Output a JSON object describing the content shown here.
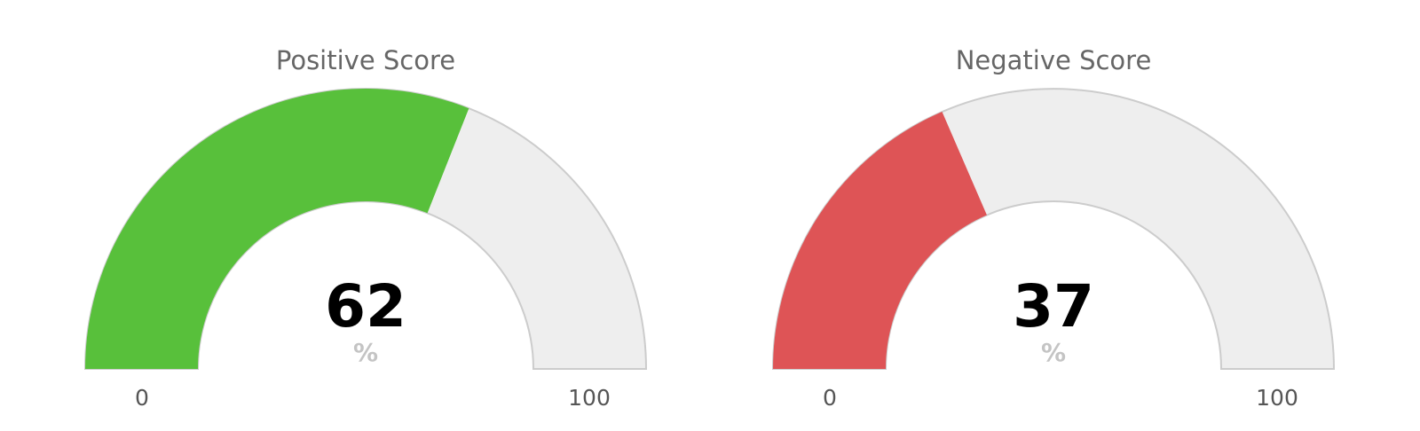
{
  "chart_data": [
    {
      "type": "gauge",
      "title": "Positive Score",
      "value": 62,
      "unit": "%",
      "min": 0,
      "max": 100,
      "min_label": "0",
      "max_label": "100",
      "color": "#58c03b",
      "track_color": "#eeeeee"
    },
    {
      "type": "gauge",
      "title": "Negative Score",
      "value": 37,
      "unit": "%",
      "min": 0,
      "max": 100,
      "min_label": "0",
      "max_label": "100",
      "color": "#de5456",
      "track_color": "#eeeeee"
    }
  ]
}
